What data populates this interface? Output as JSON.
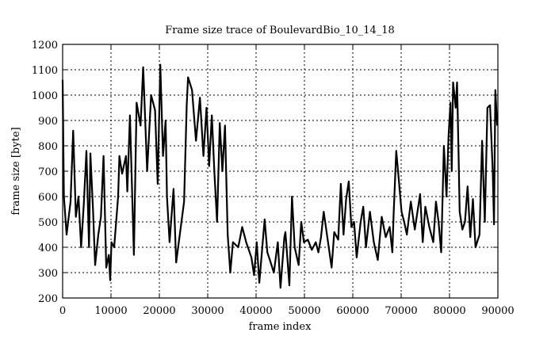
{
  "chart_data": {
    "type": "line",
    "title": "Frame size trace of BoulevardBio_10_14_18",
    "xlabel": "frame index",
    "ylabel": "frame size [byte]",
    "xlim": [
      0,
      90000
    ],
    "ylim": [
      200,
      1200
    ],
    "xticks": [
      0,
      10000,
      20000,
      30000,
      40000,
      50000,
      60000,
      70000,
      80000,
      90000
    ],
    "yticks": [
      200,
      300,
      400,
      500,
      600,
      700,
      800,
      900,
      1000,
      1100,
      1200
    ],
    "grid": true,
    "line_color": "#000000",
    "x": [
      0,
      270,
      820,
      1640,
      2180,
      2730,
      3280,
      3820,
      4370,
      4910,
      5460,
      5730,
      6280,
      6720,
      7370,
      7920,
      8460,
      9010,
      9560,
      9830,
      10100,
      10650,
      11470,
      11740,
      12290,
      13100,
      13380,
      13920,
      14740,
      15290,
      16110,
      16650,
      17470,
      18290,
      19110,
      19660,
      20200,
      20750,
      21290,
      21570,
      22110,
      22930,
      23480,
      24300,
      25120,
      25660,
      25940,
      26750,
      27570,
      28390,
      29120,
      29760,
      30300,
      30850,
      31400,
      31940,
      32490,
      33030,
      33580,
      34130,
      34670,
      35220,
      36310,
      37130,
      37950,
      39040,
      39590,
      40130,
      40680,
      41770,
      42320,
      42860,
      43680,
      44500,
      45050,
      45860,
      46060,
      46880,
      47430,
      47980,
      48800,
      49340,
      49890,
      50710,
      51520,
      52340,
      52890,
      53430,
      53980,
      54800,
      55620,
      56170,
      56980,
      57530,
      58080,
      58620,
      59170,
      59710,
      60260,
      60810,
      61620,
      62170,
      62720,
      63540,
      64350,
      65170,
      65990,
      66810,
      67630,
      68180,
      68450,
      68990,
      69540,
      70090,
      70630,
      71180,
      72000,
      72820,
      73910,
      74460,
      75000,
      75820,
      76640,
      77190,
      77730,
      78280,
      78830,
      79370,
      79810,
      80190,
      80460,
      80730,
      81280,
      81550,
      81830,
      82100,
      82650,
      83190,
      83740,
      84290,
      84830,
      85380,
      86200,
      86740,
      87290,
      87840,
      88380,
      88930,
      89200,
      89480,
      89860
    ],
    "y": [
      1060,
      600,
      450,
      580,
      860,
      520,
      600,
      400,
      570,
      780,
      400,
      770,
      550,
      330,
      450,
      520,
      760,
      320,
      370,
      270,
      420,
      400,
      600,
      760,
      690,
      760,
      620,
      920,
      370,
      970,
      880,
      1110,
      700,
      1000,
      940,
      650,
      1120,
      760,
      900,
      600,
      420,
      630,
      340,
      460,
      580,
      960,
      1070,
      1020,
      820,
      990,
      760,
      950,
      720,
      920,
      690,
      500,
      890,
      700,
      880,
      450,
      300,
      420,
      400,
      480,
      420,
      360,
      290,
      420,
      260,
      510,
      380,
      350,
      300,
      420,
      240,
      440,
      460,
      250,
      600,
      400,
      330,
      500,
      420,
      430,
      390,
      420,
      380,
      440,
      540,
      430,
      320,
      460,
      430,
      650,
      450,
      590,
      660,
      480,
      500,
      360,
      500,
      560,
      400,
      540,
      420,
      350,
      520,
      440,
      480,
      380,
      530,
      780,
      660,
      540,
      500,
      450,
      580,
      470,
      610,
      420,
      560,
      480,
      420,
      580,
      500,
      380,
      800,
      600,
      840,
      970,
      700,
      1050,
      950,
      1050,
      800,
      540,
      470,
      500,
      640,
      440,
      590,
      400,
      450,
      820,
      500,
      950,
      960,
      700,
      490,
      1020,
      880
    ]
  }
}
